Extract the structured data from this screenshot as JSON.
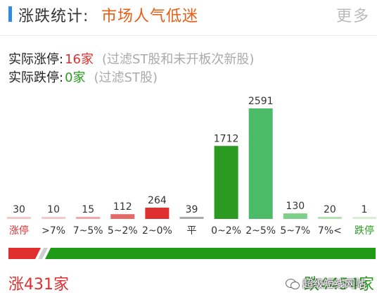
{
  "header": {
    "title": "涨跌统计:",
    "status": "市场人气低迷",
    "more_label": "更多",
    "accent_color": "#2f8ce6",
    "status_color": "#e85d12"
  },
  "stats": {
    "up": {
      "label": "实际涨停:",
      "value": "16家",
      "note": "(过滤ST股和未开板次新股)"
    },
    "down": {
      "label": "实际跌停:",
      "value": "0家",
      "note": "(过滤ST股)"
    }
  },
  "chart_data": {
    "type": "bar",
    "title": "",
    "categories": [
      "涨停",
      ">7%",
      "7~5%",
      "5~2%",
      "2~0%",
      "平",
      "0~2%",
      "2~5%",
      "5~7%",
      "7%<",
      "跌停"
    ],
    "values": [
      30,
      10,
      15,
      112,
      264,
      39,
      1712,
      2591,
      130,
      20,
      1
    ],
    "value_labels": [
      "30",
      "10",
      "15",
      "112",
      "264",
      "39",
      "1712",
      "2591",
      "130",
      "20",
      "1"
    ],
    "colors": [
      "#f6c9c9",
      "#f6c9c9",
      "#f2a8a8",
      "#e46a6a",
      "#e02e2e",
      "#aaaaaa",
      "#2a9a20",
      "#4cbb68",
      "#7dd08a",
      "#b5e2b2",
      "#d8efd2"
    ],
    "label_colors": [
      "#e02e2e",
      "#333333",
      "#333333",
      "#333333",
      "#333333",
      "#333333",
      "#333333",
      "#333333",
      "#333333",
      "#333333",
      "#2a9a20"
    ],
    "ylim": [
      0,
      2591
    ]
  },
  "progress": {
    "up_count": 431,
    "down_count": 4454,
    "up_color": "#e02e2e",
    "down_color": "#1e9a14"
  },
  "totals": {
    "up_label": "涨431家",
    "down_label": "跌4454家"
  },
  "watermark": {
    "text": "超级短线网站",
    "icon": "wechat-icon"
  }
}
